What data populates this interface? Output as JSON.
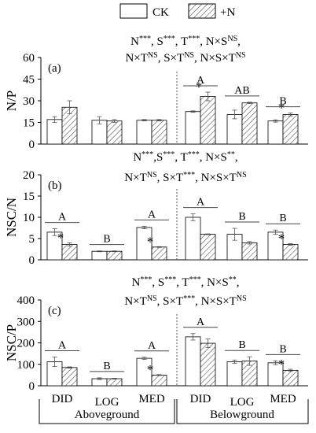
{
  "legend": [
    {
      "label": "CK",
      "pattern": "white"
    },
    {
      "label": "+N",
      "pattern": "hatch"
    }
  ],
  "colors": {
    "axis": "#000000",
    "bar_fill": "#ffffff",
    "hatch": "#444444",
    "sig_line": "#444444"
  },
  "x_axis": {
    "categories": [
      "DID",
      "LOG",
      "MED",
      "DID",
      "LOG",
      "MED"
    ],
    "groups": [
      "Aboveground",
      "Belowground"
    ]
  },
  "chart_data": [
    {
      "type": "bar",
      "panel_label": "(a)",
      "ylabel": "N/P",
      "ylim": [
        0,
        60
      ],
      "yticks": [
        0,
        15,
        30,
        45,
        60
      ],
      "categories": [
        "DID",
        "LOG",
        "MED",
        "DID",
        "LOG",
        "MED"
      ],
      "series": [
        {
          "name": "CK",
          "values": [
            17,
            16.5,
            16.5,
            22.5,
            20.5,
            16
          ],
          "errors": [
            2,
            2.5,
            0.5,
            0.5,
            3,
            0.8
          ]
        },
        {
          "name": "+N",
          "values": [
            25.5,
            16,
            16.5,
            33,
            28.5,
            20.5
          ],
          "errors": [
            4.5,
            1,
            0.5,
            3,
            0.5,
            1
          ]
        }
      ],
      "stars": [
        false,
        false,
        false,
        true,
        false,
        true
      ],
      "letters": [
        "",
        "",
        "",
        "A",
        "AB",
        "B"
      ],
      "stats_lines": [
        [
          {
            "t": "N"
          },
          {
            "t": "***",
            "sup": true
          },
          {
            "t": ", S"
          },
          {
            "t": "***",
            "sup": true
          },
          {
            "t": ", T"
          },
          {
            "t": "***",
            "sup": true
          },
          {
            "t": ", N×S"
          },
          {
            "t": "NS",
            "sup": true
          },
          {
            "t": ","
          }
        ],
        [
          {
            "t": "N×T"
          },
          {
            "t": "NS",
            "sup": true
          },
          {
            "t": ", S×T"
          },
          {
            "t": "NS",
            "sup": true
          },
          {
            "t": ", N×S×T"
          },
          {
            "t": "NS",
            "sup": true
          }
        ]
      ]
    },
    {
      "type": "bar",
      "panel_label": "(b)",
      "ylabel": "NSC/N",
      "ylim": [
        0,
        20
      ],
      "yticks": [
        0,
        5,
        10,
        15,
        20
      ],
      "categories": [
        "DID",
        "LOG",
        "MED",
        "DID",
        "LOG",
        "MED"
      ],
      "series": [
        {
          "name": "CK",
          "values": [
            6.5,
            2,
            7.6,
            10,
            6,
            6.5
          ],
          "errors": [
            0.8,
            0.1,
            0.3,
            0.8,
            1.4,
            0.5
          ]
        },
        {
          "name": "+N",
          "values": [
            3.6,
            2,
            3,
            6,
            4,
            3.6
          ],
          "errors": [
            0.4,
            0.1,
            0.1,
            0.1,
            0.3,
            0.2
          ]
        }
      ],
      "stars": [
        true,
        false,
        true,
        false,
        false,
        true
      ],
      "letters": [
        "A",
        "B",
        "A",
        "A",
        "B",
        "B"
      ],
      "stats_lines": [
        [
          {
            "t": "N"
          },
          {
            "t": "***",
            "sup": true
          },
          {
            "t": ",S"
          },
          {
            "t": "***",
            "sup": true
          },
          {
            "t": ", T"
          },
          {
            "t": "***",
            "sup": true
          },
          {
            "t": ", N×S"
          },
          {
            "t": "**",
            "sup": true
          },
          {
            "t": ","
          }
        ],
        [
          {
            "t": "N×T"
          },
          {
            "t": "NS",
            "sup": true
          },
          {
            "t": ", S×T"
          },
          {
            "t": "***",
            "sup": true
          },
          {
            "t": ", N×S×T"
          },
          {
            "t": "NS",
            "sup": true
          }
        ]
      ]
    },
    {
      "type": "bar",
      "panel_label": "(c)",
      "ylabel": "NSC/P",
      "ylim": [
        0,
        400
      ],
      "yticks": [
        0,
        100,
        200,
        300,
        400
      ],
      "categories": [
        "DID",
        "LOG",
        "MED",
        "DID",
        "LOG",
        "MED"
      ],
      "series": [
        {
          "name": "CK",
          "values": [
            112,
            33,
            128,
            228,
            112,
            107
          ],
          "errors": [
            22,
            4,
            5,
            15,
            8,
            9
          ]
        },
        {
          "name": "+N",
          "values": [
            85,
            33,
            50,
            198,
            115,
            72
          ],
          "errors": [
            3,
            2,
            2,
            20,
            20,
            5
          ]
        }
      ],
      "stars": [
        false,
        false,
        true,
        false,
        false,
        true
      ],
      "letters": [
        "A",
        "B",
        "A",
        "A",
        "B",
        "B"
      ],
      "stats_lines": [
        [
          {
            "t": "N"
          },
          {
            "t": "***",
            "sup": true
          },
          {
            "t": ", S"
          },
          {
            "t": "***",
            "sup": true
          },
          {
            "t": ", T"
          },
          {
            "t": "***",
            "sup": true
          },
          {
            "t": ", N×S"
          },
          {
            "t": "**",
            "sup": true
          },
          {
            "t": ","
          }
        ],
        [
          {
            "t": "N×T"
          },
          {
            "t": "NS",
            "sup": true
          },
          {
            "t": ", S×T"
          },
          {
            "t": "***",
            "sup": true
          },
          {
            "t": ", N×S×T"
          },
          {
            "t": "NS",
            "sup": true
          }
        ]
      ]
    }
  ]
}
